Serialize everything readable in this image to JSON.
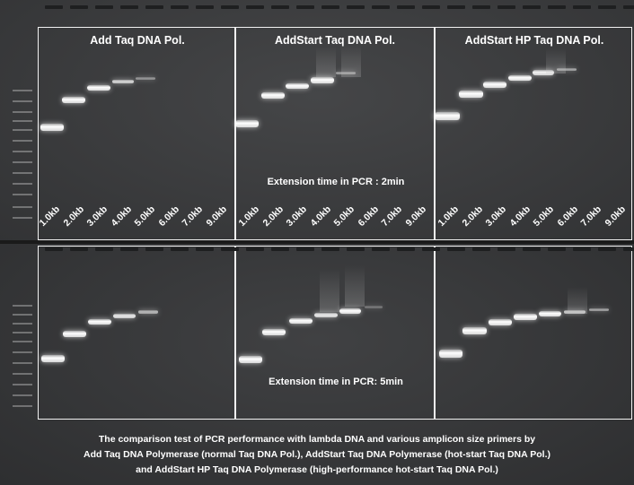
{
  "panels": [
    {
      "title": "Add Taq DNA Pol."
    },
    {
      "title": "AddStart Taq DNA Pol."
    },
    {
      "title": "AddStart HP Taq DNA Pol."
    }
  ],
  "lane_labels": [
    "1.0kb",
    "2.0kb",
    "3.0kb",
    "4.0kb",
    "5.0kb",
    "6.0kb",
    "7.0kb",
    "9.0kb"
  ],
  "extension_top": "Extension time in PCR : 2min",
  "extension_bottom": "Extension time in PCR: 5min",
  "caption": [
    "The comparison test of PCR performance with lambda DNA and various amplicon size primers by",
    "Add Taq DNA Polymerase (normal Taq DNA Pol.), AddStart Taq DNA Polymerase (hot-start Taq DNA Pol.)",
    "and AddStart HP Taq DNA Polymerase (high-performance hot-start Taq DNA Pol.)"
  ],
  "colors": {
    "gel": "#3a3b3d",
    "band": "#ffffff",
    "frame": "#f2f2f2"
  }
}
